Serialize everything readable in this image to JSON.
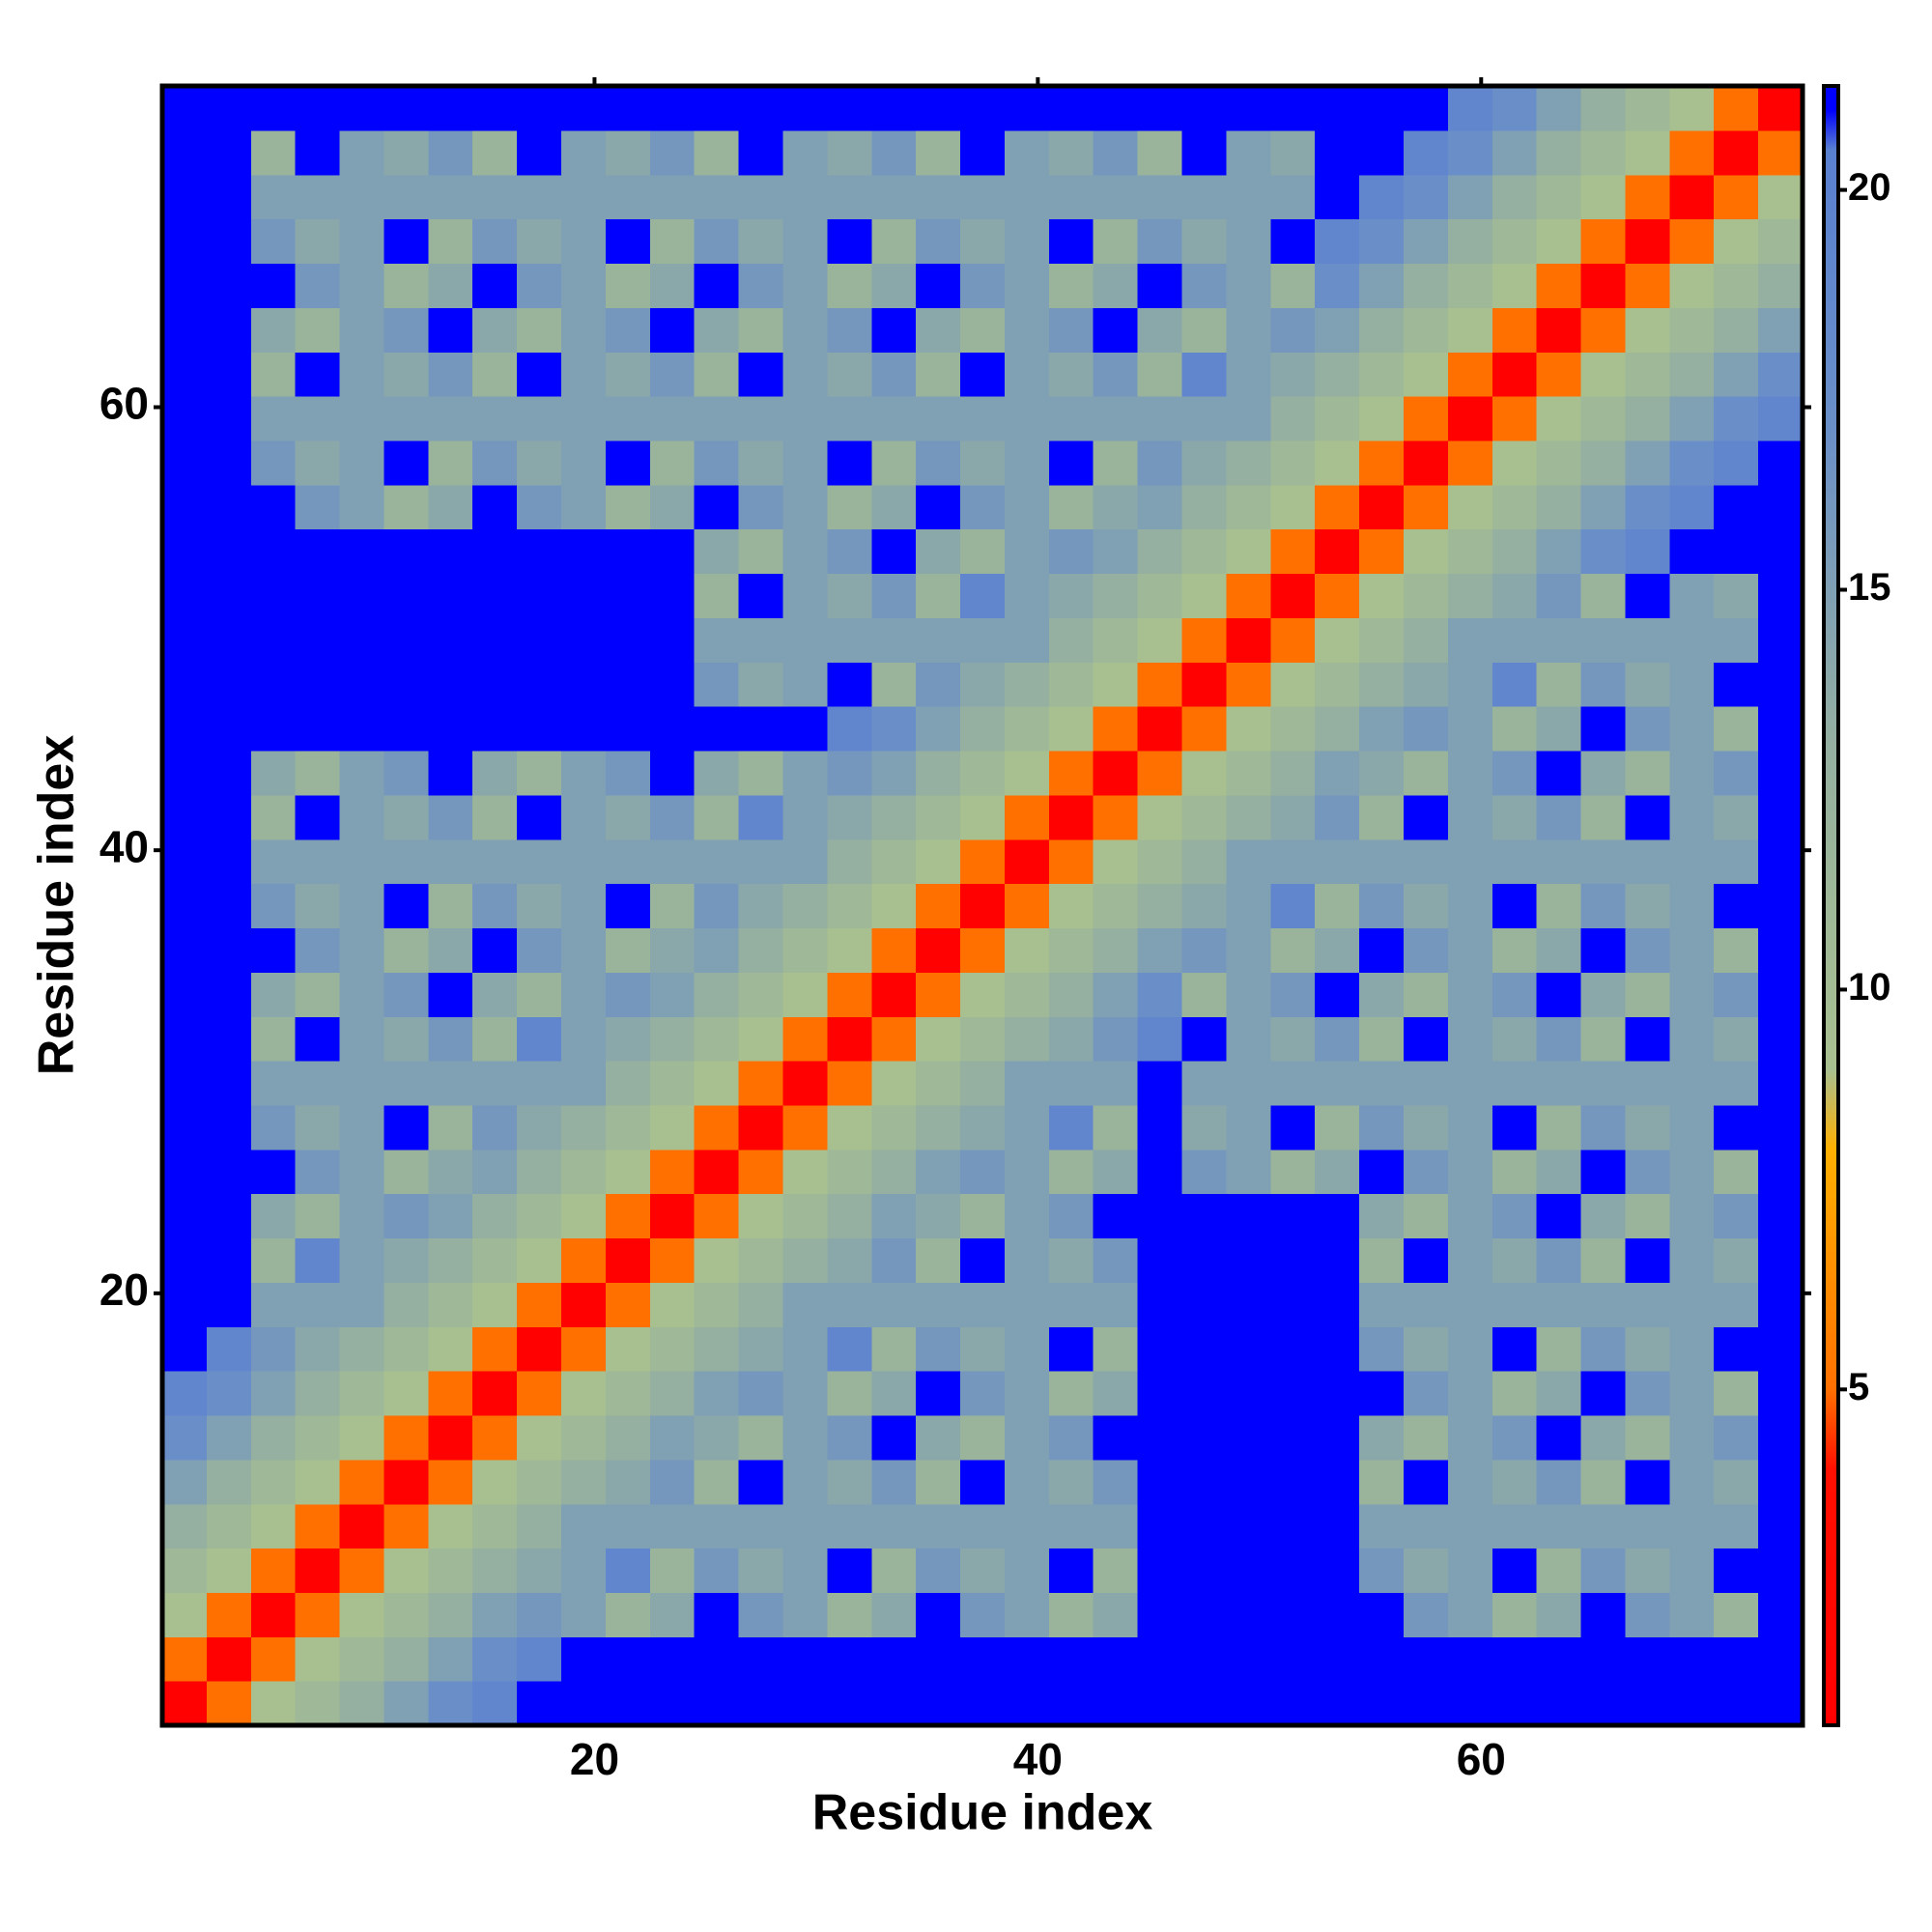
{
  "chart_data": {
    "type": "heatmap",
    "xlabel": "Residue index",
    "ylabel": "Residue index",
    "x": [
      1.5,
      3.5,
      5.5,
      7.5,
      9.5,
      11.5,
      13.5,
      15.5,
      17.5,
      19.5,
      21.5,
      23.5,
      25.5,
      27.5,
      29.5,
      31.5,
      33.5,
      35.5,
      37.5,
      39.5,
      41.5,
      43.5,
      45.5,
      47.5,
      49.5,
      51.5,
      53.5,
      55.5,
      57.5,
      59.5,
      61.5,
      63.5,
      65.5,
      67.5,
      69.5,
      71.5,
      73.5
    ],
    "y": [
      1.5,
      3.5,
      5.5,
      7.5,
      9.5,
      11.5,
      13.5,
      15.5,
      17.5,
      19.5,
      21.5,
      23.5,
      25.5,
      27.5,
      29.5,
      31.5,
      33.5,
      35.5,
      37.5,
      39.5,
      41.5,
      43.5,
      45.5,
      47.5,
      49.5,
      51.5,
      53.5,
      55.5,
      57.5,
      59.5,
      61.5,
      63.5,
      65.5,
      67.5,
      69.5,
      71.5,
      73.5
    ],
    "xlim": [
      0.5,
      74.5
    ],
    "ylim": [
      0.5,
      74.5
    ],
    "xticks": [
      20,
      40,
      60
    ],
    "yticks": [
      20,
      40,
      60
    ],
    "colorbar": {
      "lim": [
        0.8,
        21.3
      ],
      "ticks": [
        5,
        10,
        15,
        20
      ]
    },
    "colorscale": [
      [
        0.8,
        "#ff0000"
      ],
      [
        4,
        "#ff1000"
      ],
      [
        5,
        "#ff7000"
      ],
      [
        8,
        "#ffb000"
      ],
      [
        9,
        "#a8c090"
      ],
      [
        13,
        "#95b0a0"
      ],
      [
        17,
        "#6a8fc8"
      ],
      [
        20.5,
        "#5a80d0"
      ],
      [
        21,
        "#0000ff"
      ],
      [
        21.3,
        "#0000ff"
      ]
    ],
    "z": [
      [
        1,
        5,
        9,
        11,
        13,
        15,
        17,
        19,
        21,
        22,
        22,
        22,
        22,
        22,
        22,
        22,
        22,
        22,
        22,
        22,
        22,
        22,
        22,
        22,
        22,
        22,
        22,
        22,
        22,
        22,
        22,
        22,
        22,
        22,
        22,
        22,
        22
      ],
      [
        5,
        1,
        5,
        9,
        11,
        13,
        15,
        17,
        19,
        21,
        22,
        22,
        22,
        22,
        22,
        22,
        22,
        22,
        22,
        22,
        22,
        22,
        22,
        22,
        22,
        22,
        22,
        22,
        22,
        22,
        22,
        22,
        22,
        22,
        22,
        22,
        22
      ],
      [
        9,
        5,
        1,
        5,
        9,
        11,
        13,
        15,
        16,
        15,
        12,
        14,
        22,
        16,
        15,
        12,
        14,
        22,
        16,
        15,
        12,
        14,
        22,
        22,
        22,
        22,
        22,
        22,
        16,
        15,
        12,
        14,
        22,
        16,
        15,
        12,
        22
      ],
      [
        11,
        9,
        5,
        1,
        5,
        9,
        11,
        13,
        14,
        15,
        19,
        12,
        16,
        14,
        15,
        22,
        12,
        16,
        14,
        15,
        22,
        12,
        22,
        22,
        22,
        22,
        22,
        16,
        14,
        15,
        22,
        12,
        16,
        14,
        15,
        22,
        22
      ],
      [
        13,
        11,
        9,
        5,
        1,
        5,
        9,
        11,
        13,
        15,
        15,
        15,
        15,
        15,
        15,
        15,
        15,
        15,
        15,
        15,
        15,
        15,
        22,
        22,
        22,
        22,
        22,
        15,
        15,
        15,
        15,
        15,
        15,
        15,
        15,
        15,
        22
      ],
      [
        15,
        13,
        11,
        9,
        5,
        1,
        5,
        9,
        11,
        13,
        14,
        16,
        12,
        21,
        15,
        14,
        16,
        12,
        22,
        15,
        14,
        16,
        22,
        22,
        22,
        22,
        22,
        12,
        22,
        15,
        14,
        16,
        12,
        22,
        15,
        14,
        22
      ],
      [
        17,
        15,
        13,
        11,
        9,
        5,
        1,
        5,
        9,
        11,
        13,
        15,
        14,
        12,
        15,
        16,
        22,
        14,
        12,
        15,
        16,
        22,
        22,
        22,
        22,
        22,
        22,
        14,
        12,
        15,
        16,
        22,
        14,
        12,
        15,
        16,
        22
      ],
      [
        19,
        17,
        15,
        13,
        11,
        9,
        5,
        1,
        5,
        9,
        11,
        13,
        15,
        16,
        15,
        12,
        14,
        22,
        16,
        15,
        12,
        14,
        22,
        22,
        22,
        22,
        22,
        22,
        16,
        15,
        12,
        14,
        22,
        16,
        15,
        12,
        22
      ],
      [
        21,
        19,
        16,
        14,
        13,
        11,
        9,
        5,
        1,
        5,
        9,
        11,
        13,
        14,
        15,
        19,
        12,
        16,
        14,
        15,
        22,
        12,
        22,
        22,
        22,
        22,
        22,
        16,
        14,
        15,
        22,
        12,
        16,
        14,
        15,
        22,
        22
      ],
      [
        22,
        21,
        15,
        15,
        15,
        13,
        11,
        9,
        5,
        1,
        5,
        9,
        11,
        13,
        15,
        15,
        15,
        15,
        15,
        15,
        15,
        15,
        22,
        22,
        22,
        22,
        22,
        15,
        15,
        15,
        15,
        15,
        15,
        15,
        15,
        15,
        22
      ],
      [
        22,
        22,
        12,
        19,
        15,
        14,
        13,
        11,
        9,
        5,
        1,
        5,
        9,
        11,
        13,
        14,
        16,
        12,
        21,
        15,
        14,
        16,
        22,
        22,
        22,
        22,
        22,
        12,
        22,
        15,
        14,
        16,
        12,
        22,
        15,
        14,
        22
      ],
      [
        22,
        22,
        14,
        12,
        15,
        16,
        15,
        13,
        11,
        9,
        5,
        1,
        5,
        9,
        11,
        13,
        15,
        14,
        12,
        15,
        16,
        22,
        22,
        22,
        22,
        22,
        22,
        14,
        12,
        15,
        16,
        22,
        14,
        12,
        15,
        16,
        22
      ],
      [
        22,
        22,
        22,
        16,
        15,
        12,
        14,
        15,
        13,
        11,
        9,
        5,
        1,
        5,
        9,
        11,
        13,
        15,
        16,
        15,
        12,
        14,
        22,
        16,
        15,
        12,
        14,
        22,
        16,
        15,
        12,
        14,
        22,
        16,
        15,
        12,
        22
      ],
      [
        22,
        22,
        16,
        14,
        15,
        21,
        12,
        16,
        14,
        13,
        11,
        9,
        5,
        1,
        5,
        9,
        11,
        13,
        14,
        15,
        19,
        12,
        22,
        14,
        15,
        22,
        12,
        16,
        14,
        15,
        22,
        12,
        16,
        14,
        15,
        22,
        22
      ],
      [
        22,
        22,
        15,
        15,
        15,
        15,
        15,
        15,
        15,
        15,
        13,
        11,
        9,
        5,
        1,
        5,
        9,
        11,
        13,
        15,
        15,
        15,
        21,
        15,
        15,
        15,
        15,
        15,
        15,
        15,
        15,
        15,
        15,
        15,
        15,
        15,
        22
      ],
      [
        22,
        22,
        12,
        22,
        15,
        14,
        16,
        12,
        19,
        15,
        14,
        13,
        11,
        9,
        5,
        1,
        5,
        9,
        11,
        13,
        14,
        16,
        19,
        21,
        15,
        14,
        16,
        12,
        22,
        15,
        14,
        16,
        12,
        22,
        15,
        14,
        22
      ],
      [
        22,
        22,
        14,
        12,
        15,
        16,
        22,
        14,
        12,
        15,
        16,
        15,
        13,
        11,
        9,
        5,
        1,
        5,
        9,
        11,
        13,
        15,
        17,
        12,
        15,
        16,
        22,
        14,
        12,
        15,
        16,
        22,
        14,
        12,
        15,
        16,
        22
      ],
      [
        22,
        22,
        22,
        16,
        15,
        12,
        14,
        22,
        16,
        15,
        12,
        14,
        15,
        13,
        11,
        9,
        5,
        1,
        5,
        9,
        11,
        13,
        15,
        16,
        15,
        12,
        14,
        22,
        16,
        15,
        12,
        14,
        22,
        16,
        15,
        12,
        22
      ],
      [
        22,
        22,
        16,
        14,
        15,
        22,
        12,
        16,
        14,
        15,
        21,
        12,
        16,
        14,
        13,
        11,
        9,
        5,
        1,
        5,
        9,
        11,
        13,
        14,
        15,
        19,
        12,
        16,
        14,
        15,
        22,
        12,
        16,
        14,
        15,
        22,
        22
      ],
      [
        22,
        22,
        15,
        15,
        15,
        15,
        15,
        15,
        15,
        15,
        15,
        15,
        15,
        15,
        15,
        13,
        11,
        9,
        5,
        1,
        5,
        9,
        11,
        13,
        15,
        15,
        15,
        15,
        15,
        15,
        15,
        15,
        15,
        15,
        15,
        15,
        22
      ],
      [
        22,
        22,
        12,
        22,
        15,
        14,
        16,
        12,
        22,
        15,
        14,
        16,
        12,
        19,
        15,
        14,
        13,
        11,
        9,
        5,
        1,
        5,
        9,
        11,
        13,
        14,
        16,
        12,
        21,
        15,
        14,
        16,
        12,
        22,
        15,
        14,
        22
      ],
      [
        22,
        22,
        14,
        12,
        15,
        16,
        22,
        14,
        12,
        15,
        16,
        22,
        14,
        12,
        15,
        16,
        15,
        13,
        11,
        9,
        5,
        1,
        5,
        9,
        11,
        13,
        15,
        14,
        12,
        15,
        16,
        22,
        14,
        12,
        15,
        16,
        22
      ],
      [
        22,
        22,
        22,
        22,
        22,
        22,
        22,
        22,
        22,
        22,
        22,
        22,
        22,
        22,
        21,
        19,
        17,
        15,
        13,
        11,
        9,
        5,
        1,
        5,
        9,
        11,
        13,
        15,
        16,
        15,
        12,
        14,
        22,
        16,
        15,
        12,
        22
      ],
      [
        22,
        22,
        22,
        22,
        22,
        22,
        22,
        22,
        22,
        22,
        22,
        22,
        16,
        14,
        15,
        21,
        12,
        16,
        14,
        13,
        11,
        9,
        5,
        1,
        5,
        9,
        11,
        13,
        14,
        15,
        19,
        12,
        16,
        14,
        15,
        22,
        22
      ],
      [
        22,
        22,
        22,
        22,
        22,
        22,
        22,
        22,
        22,
        22,
        22,
        22,
        15,
        15,
        15,
        15,
        15,
        15,
        15,
        15,
        13,
        11,
        9,
        5,
        1,
        5,
        9,
        11,
        13,
        15,
        15,
        15,
        15,
        15,
        15,
        15,
        22
      ],
      [
        22,
        22,
        22,
        22,
        22,
        22,
        22,
        22,
        22,
        22,
        22,
        22,
        12,
        22,
        15,
        14,
        16,
        12,
        19,
        15,
        14,
        13,
        11,
        9,
        5,
        1,
        5,
        9,
        11,
        13,
        14,
        16,
        12,
        21,
        15,
        14,
        22
      ],
      [
        22,
        22,
        22,
        22,
        22,
        22,
        22,
        22,
        22,
        22,
        22,
        22,
        14,
        12,
        15,
        16,
        22,
        14,
        12,
        15,
        16,
        15,
        13,
        11,
        9,
        5,
        1,
        5,
        9,
        11,
        13,
        15,
        17,
        19,
        21,
        22,
        22
      ],
      [
        22,
        22,
        22,
        16,
        15,
        12,
        14,
        22,
        16,
        15,
        12,
        14,
        22,
        16,
        15,
        12,
        14,
        22,
        16,
        15,
        12,
        14,
        15,
        13,
        11,
        9,
        5,
        1,
        5,
        9,
        11,
        13,
        15,
        17,
        19,
        21,
        22
      ],
      [
        22,
        22,
        16,
        14,
        15,
        22,
        12,
        16,
        14,
        15,
        22,
        12,
        16,
        14,
        15,
        22,
        12,
        16,
        14,
        15,
        21,
        12,
        16,
        14,
        13,
        11,
        9,
        5,
        1,
        5,
        9,
        11,
        13,
        15,
        17,
        19,
        21
      ],
      [
        22,
        22,
        15,
        15,
        15,
        15,
        15,
        15,
        15,
        15,
        15,
        15,
        15,
        15,
        15,
        15,
        15,
        15,
        15,
        15,
        15,
        15,
        15,
        15,
        15,
        13,
        11,
        9,
        5,
        1,
        5,
        9,
        11,
        13,
        15,
        17,
        19
      ],
      [
        22,
        22,
        12,
        22,
        15,
        14,
        16,
        12,
        22,
        15,
        14,
        16,
        12,
        22,
        15,
        14,
        16,
        12,
        22,
        15,
        14,
        16,
        12,
        19,
        15,
        14,
        13,
        11,
        9,
        5,
        1,
        5,
        9,
        11,
        13,
        15,
        17
      ],
      [
        22,
        22,
        14,
        12,
        15,
        16,
        22,
        14,
        12,
        15,
        16,
        22,
        14,
        12,
        15,
        16,
        22,
        14,
        12,
        15,
        16,
        22,
        14,
        12,
        15,
        16,
        15,
        13,
        11,
        9,
        5,
        1,
        5,
        9,
        11,
        13,
        15
      ],
      [
        22,
        22,
        22,
        16,
        15,
        12,
        14,
        22,
        16,
        15,
        12,
        14,
        22,
        16,
        15,
        12,
        14,
        22,
        16,
        15,
        12,
        14,
        22,
        16,
        15,
        12,
        17,
        15,
        13,
        11,
        9,
        5,
        1,
        5,
        9,
        11,
        13
      ],
      [
        22,
        22,
        16,
        14,
        15,
        22,
        12,
        16,
        14,
        15,
        22,
        12,
        16,
        14,
        15,
        22,
        12,
        16,
        14,
        15,
        22,
        12,
        16,
        14,
        15,
        21,
        19,
        17,
        15,
        13,
        11,
        9,
        5,
        1,
        5,
        9,
        11
      ],
      [
        22,
        22,
        15,
        15,
        15,
        15,
        15,
        15,
        15,
        15,
        15,
        15,
        15,
        15,
        15,
        15,
        15,
        15,
        15,
        15,
        15,
        15,
        15,
        15,
        15,
        15,
        21,
        19,
        17,
        15,
        13,
        11,
        9,
        5,
        1,
        5,
        9
      ],
      [
        22,
        22,
        12,
        22,
        15,
        14,
        16,
        12,
        22,
        15,
        14,
        16,
        12,
        22,
        15,
        14,
        16,
        12,
        22,
        15,
        14,
        16,
        12,
        22,
        15,
        14,
        22,
        21,
        19,
        17,
        15,
        13,
        11,
        9,
        5,
        1,
        5
      ],
      [
        22,
        22,
        22,
        22,
        22,
        22,
        22,
        22,
        22,
        22,
        22,
        22,
        22,
        22,
        22,
        22,
        22,
        22,
        22,
        22,
        22,
        22,
        22,
        22,
        22,
        22,
        22,
        22,
        21,
        19,
        17,
        15,
        13,
        11,
        9,
        5,
        1
      ]
    ]
  }
}
